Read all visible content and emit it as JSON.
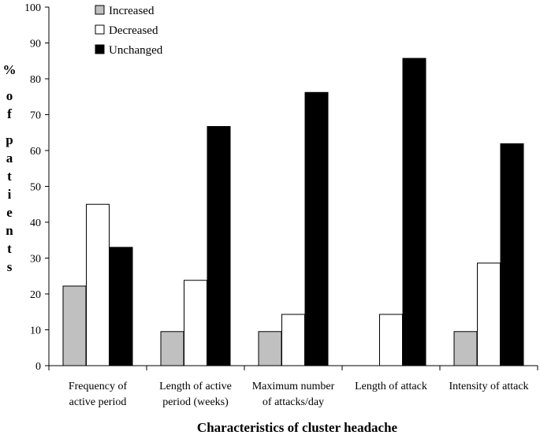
{
  "chart_data": {
    "type": "bar",
    "title": "",
    "xlabel": "Characteristics of cluster headache",
    "ylabel": "% of patients",
    "ylim": [
      0,
      100
    ],
    "yticks": [
      0,
      10,
      20,
      30,
      40,
      50,
      60,
      70,
      80,
      90,
      100
    ],
    "grid": false,
    "legend_position": "top-left",
    "categories": [
      [
        "Frequency of",
        "active period"
      ],
      [
        "Length of active",
        "period (weeks)"
      ],
      [
        "Maximum number",
        "of attacks/day"
      ],
      [
        "Length of attack"
      ],
      [
        "Intensity of attack"
      ]
    ],
    "series": [
      {
        "name": "Increased",
        "color": "#c0c0c0",
        "values": [
          22.2,
          9.5,
          9.5,
          0,
          9.5
        ]
      },
      {
        "name": "Decreased",
        "color": "#ffffff",
        "values": [
          45,
          23.8,
          14.3,
          14.3,
          28.6
        ]
      },
      {
        "name": "Unchanged",
        "color": "#000000",
        "values": [
          33,
          66.7,
          76.2,
          85.7,
          61.9
        ]
      }
    ]
  }
}
